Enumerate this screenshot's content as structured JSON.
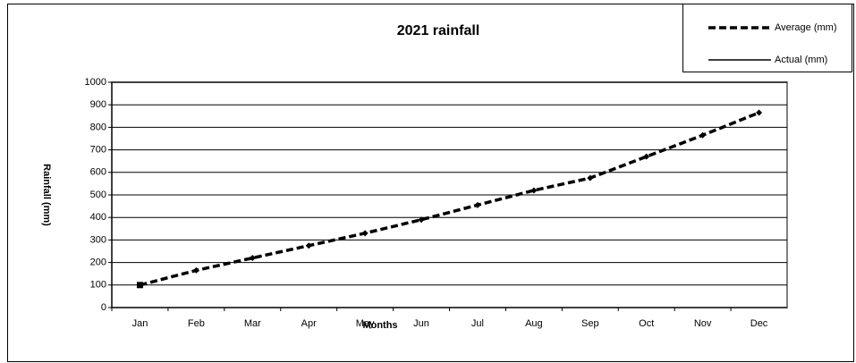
{
  "chart_data": {
    "type": "line",
    "title": "2021 rainfall",
    "x_label": "Months",
    "y_label": "Rainfall (mm)",
    "categories": [
      "Jan",
      "Feb",
      "Mar",
      "Apr",
      "May",
      "Jun",
      "Jul",
      "Aug",
      "Sep",
      "Oct",
      "Nov",
      "Dec"
    ],
    "series": [
      {
        "name": "Average (mm)",
        "color": "#000000",
        "style": "dashed",
        "values": [
          100,
          165,
          220,
          275,
          330,
          390,
          455,
          520,
          575,
          670,
          765,
          865
        ]
      },
      {
        "name": "Actual (mm)",
        "color": "#000000",
        "style": "solid",
        "values": [
          100,
          null,
          null,
          null,
          null,
          null,
          null,
          null,
          null,
          null,
          null,
          null
        ]
      }
    ],
    "ylim": [
      0,
      1000
    ],
    "yticks": [
      0,
      100,
      200,
      300,
      400,
      500,
      600,
      700,
      800,
      900,
      1000
    ],
    "grid": true,
    "legend": "top-right"
  }
}
